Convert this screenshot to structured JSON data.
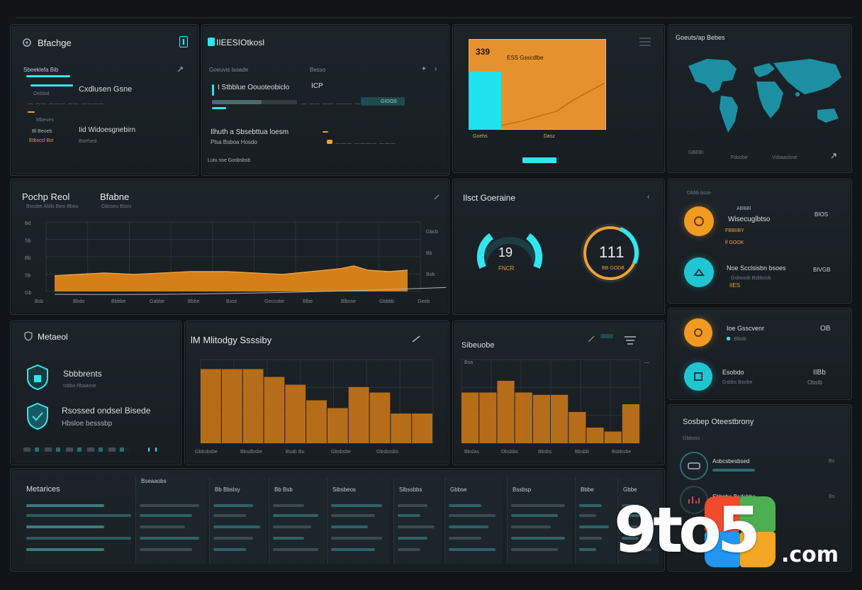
{
  "panel_a": {
    "title": "Bfachge",
    "sub1": "Sbeeklefa Bib",
    "row1": "Cxdlusen Gsne",
    "row1_sub": "Oeblod",
    "row1_line": "— —— ——— —— ————",
    "row2_label": "Mbeues",
    "row3_a": "Bl Beoeb",
    "row3_b": "Iid Widoesgnebirn",
    "row3_c": "Etbsccl Bsi",
    "row3_d": "Bsefsed"
  },
  "panel_b": {
    "title": "IIEESIOtkosl",
    "col1": "Goeuvis lsoade",
    "col2": "Besso",
    "row1": "I Stbblue Oouoteobiclo",
    "row1_val": "ICP",
    "row2_val": "GIOOS",
    "row3": "Ilhuth a Sbsebttua loesm",
    "row3_sub": "Plsa Bsboa Hosdo",
    "footer": "Lutu soe Gosbsbsb"
  },
  "panel_c": {
    "badge": "339",
    "title": "ESS Gsscdlbe",
    "xl1": "Goehs",
    "xl2": "Dasz",
    "button": ""
  },
  "panel_d": {
    "title": "Goeuts/ap Bebes",
    "l1": "GBEBI",
    "l2": "Fdoobe",
    "l3": "Vsbaaslsse"
  },
  "panel_e": {
    "title": "Pochp Reol",
    "title2": "Bfabne",
    "sub": "Bsssbe Ablls Beis Bbou",
    "sub2": "Gbsseu Bsou",
    "x_labels": [
      "Bsb",
      "Bbdo",
      "Bbbbe",
      "Gabbe",
      "Bbbe",
      "Bsss",
      "Geccobe",
      "Blbe",
      "Blbsse",
      "Gbbbb",
      "Geeb"
    ],
    "y_labels": [
      "Bd",
      "Sb",
      "Bb",
      "Sb",
      "Gb"
    ],
    "right_labels": [
      "Gbcb",
      "Bb",
      "Bob"
    ],
    "colors": {
      "fill": "#d47f18",
      "line": "#e8a33a"
    }
  },
  "panel_f": {
    "title": "Ilsct Goeraine",
    "gauge1_value": "19",
    "gauge1_label": "FNCR",
    "gauge2_value": "111",
    "gauge2_label": "BB GODB"
  },
  "panel_g": {
    "header": "Gbbb bsse",
    "item1_title": "Wisecuglbtso",
    "item1_pre": "ABBBl",
    "item1_sub": "FBBIIBY",
    "item1_tag": "lf GOOK",
    "item1_val": "BIOS",
    "item2_title": "Noe Scclsisbn bsoes",
    "item2_sub": "Gsbsosb Bsbbssb",
    "item2_tag": "IIES",
    "item2_val": "BIVGB"
  },
  "panel_h": {
    "item1_title": "Ioe Gsscvenr",
    "item1_sub": "Blbsb",
    "item1_val": "OB",
    "item2_title": "Esobdo",
    "item2_sub": "Gsbbs Boobe",
    "item2_val": "IIBb",
    "item2_val2": "Obslb"
  },
  "panel_i": {
    "title": "Metaeol",
    "item1": "Sbbbrents",
    "item1_sub": "Isbba Rbaasse",
    "item2": "Rsossed ondsel Bisede",
    "item2_sub": "Hbsloe besssbp"
  },
  "panel_j": {
    "title": "lM Mlitodgy Ssssiby",
    "x_labels": [
      "Gbbsbsbe",
      "Bbsdbsbe",
      "Bsab Bu",
      "Gbsbsbe",
      "Gbsbssbs"
    ],
    "values": [
      0.95,
      0.95,
      0.95,
      0.85,
      0.75,
      0.55,
      0.45,
      0.72,
      0.65,
      0.38,
      0.38
    ],
    "colors": {
      "fill": "#c8751a"
    }
  },
  "panel_k": {
    "title": "Sibeuobe",
    "y_top": "Bsa",
    "x_labels": [
      "Bbslas",
      "Dbsbbs",
      "Bbsbs",
      "Bbsbb",
      "Bsbbsbe"
    ],
    "values": [
      0.65,
      0.65,
      0.8,
      0.65,
      0.62,
      0.62,
      0.4,
      0.2,
      0.15,
      0.5
    ],
    "colors": {
      "fill": "#c8751a"
    }
  },
  "panel_l": {
    "title": "Sosbep Oteestbrony",
    "sub": "Gbboss",
    "item1": "Aobcsbesbsed",
    "item1_val": "Bs",
    "item2": "Sbbnbe Bsdsbbe",
    "item2_val": "Bs"
  },
  "panel_m": {
    "title": "Metarices",
    "headers": [
      "Bseaaobs",
      "Bb Bbslsy",
      "Bb Bsb",
      "Sibsbeos",
      "Slbssbbs",
      "Gbbse",
      "Bssbsp",
      "Bbbe",
      "Gbbe"
    ]
  },
  "logo": {
    "main": "9to5",
    "suffix": ".com"
  }
}
